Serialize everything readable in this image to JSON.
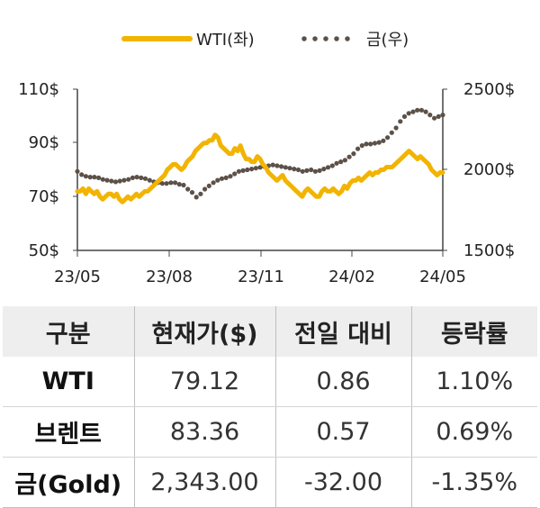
{
  "chart_data": {
    "type": "line",
    "x_tick_labels": [
      "23/05",
      "23/08",
      "23/11",
      "24/02",
      "24/05"
    ],
    "left_axis": {
      "ylim": [
        50,
        110
      ],
      "ticks": [
        "50$",
        "70$",
        "90$",
        "110$"
      ]
    },
    "right_axis": {
      "ylim": [
        1500,
        2500
      ],
      "ticks": [
        "1500$",
        "2000$",
        "2500$"
      ]
    },
    "legend_position": "top-center",
    "series": [
      {
        "name": "WTI(좌)",
        "axis": "left",
        "style": "solid",
        "color": "#f2b400",
        "values": [
          72,
          72,
          73,
          71,
          73,
          72,
          71,
          72,
          70,
          69,
          70,
          71,
          71,
          70,
          71,
          69,
          68,
          69,
          70,
          69,
          70,
          71,
          70,
          71,
          72,
          72,
          73,
          74,
          75,
          76,
          77,
          78,
          80,
          81,
          82,
          82,
          81,
          80,
          81,
          83,
          84,
          85,
          87,
          88,
          89,
          90,
          90,
          91,
          91,
          93,
          92,
          89,
          88,
          87,
          86,
          86,
          88,
          87,
          89,
          86,
          84,
          84,
          83,
          83,
          85,
          84,
          82,
          81,
          79,
          78,
          77,
          76,
          77,
          78,
          76,
          75,
          74,
          73,
          72,
          71,
          70,
          72,
          73,
          72,
          71,
          70,
          70,
          72,
          73,
          72,
          72,
          73,
          72,
          71,
          72,
          74,
          73,
          75,
          76,
          76,
          77,
          76,
          77,
          78,
          79,
          78,
          79,
          79,
          80,
          80,
          81,
          81,
          81,
          82,
          83,
          84,
          85,
          86,
          87,
          86,
          85,
          84,
          85,
          84,
          83,
          82,
          80,
          79,
          78,
          79,
          79
        ]
      },
      {
        "name": "금(우)",
        "axis": "right",
        "style": "dotted",
        "color": "#5c5148",
        "values": [
          1990,
          1970,
          1960,
          1955,
          1955,
          1950,
          1940,
          1935,
          1930,
          1925,
          1930,
          1935,
          1940,
          1950,
          1955,
          1950,
          1945,
          1935,
          1925,
          1920,
          1915,
          1915,
          1920,
          1920,
          1910,
          1905,
          1880,
          1860,
          1830,
          1850,
          1880,
          1900,
          1920,
          1935,
          1945,
          1950,
          1960,
          1975,
          1990,
          1995,
          2000,
          2005,
          2010,
          2015,
          2020,
          2025,
          2030,
          2025,
          2020,
          2015,
          2010,
          2005,
          2000,
          1990,
          1995,
          2000,
          1990,
          1995,
          2005,
          2015,
          2025,
          2040,
          2050,
          2060,
          2080,
          2100,
          2130,
          2150,
          2160,
          2160,
          2165,
          2170,
          2180,
          2200,
          2230,
          2260,
          2300,
          2330,
          2350,
          2360,
          2370,
          2370,
          2360,
          2340,
          2320,
          2330,
          2340
        ]
      }
    ]
  },
  "table": {
    "headers": [
      "구분",
      "현재가($)",
      "전일 대비",
      "등락률"
    ],
    "rows": [
      [
        "WTI",
        "79.12",
        "0.86",
        "1.10%"
      ],
      [
        "브렌트",
        "83.36",
        "0.57",
        "0.69%"
      ],
      [
        "금(Gold)",
        "2,343.00",
        "-32.00",
        "-1.35%"
      ]
    ]
  }
}
